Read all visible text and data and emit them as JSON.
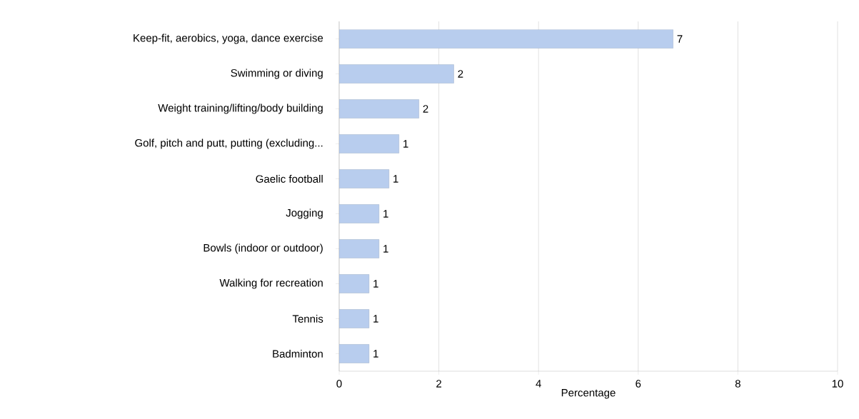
{
  "chart_data": {
    "type": "bar",
    "orientation": "horizontal",
    "xlabel": "Percentage",
    "categories": [
      "Keep-fit, aerobics, yoga, dance exercise",
      "Swimming or diving",
      "Weight training/lifting/body building",
      "Golf, pitch and putt, putting (excluding...",
      "Gaelic football",
      "Jogging",
      "Bowls (indoor or outdoor)",
      "Walking for recreation",
      "Tennis",
      "Badminton"
    ],
    "values": [
      6.7,
      2.3,
      1.6,
      1.2,
      1.0,
      0.8,
      0.8,
      0.6,
      0.6,
      0.6
    ],
    "value_labels": [
      "7",
      "2",
      "2",
      "1",
      "1",
      "1",
      "1",
      "1",
      "1",
      "1"
    ],
    "color": "#b8cdee",
    "xlim": [
      0,
      10
    ],
    "xticks": [
      0,
      2,
      4,
      6,
      8,
      10
    ],
    "grid": "x"
  }
}
